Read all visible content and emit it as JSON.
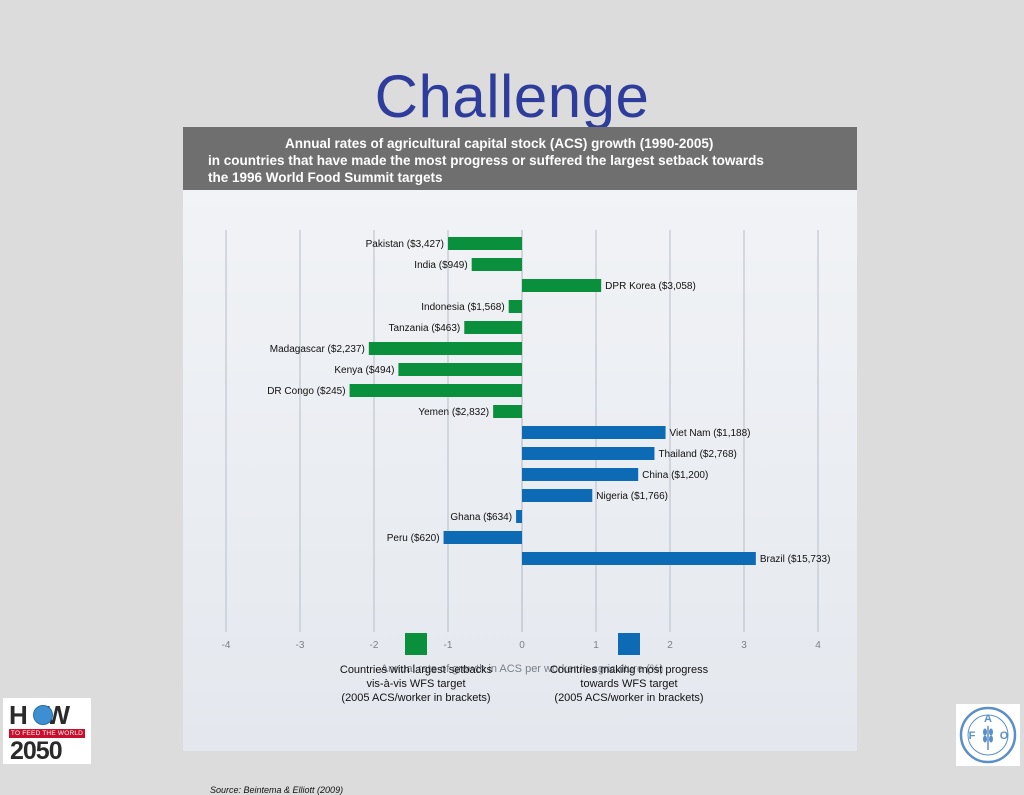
{
  "slide": {
    "title": "Challenge"
  },
  "figure": {
    "header_lines": [
      "Annual rates of agricultural capital stock (ACS) growth (1990-2005)",
      "in countries that have made the most progress or suffered the largest setback towards",
      "the 1996 World Food Summit targets"
    ],
    "legend": [
      {
        "label": "Countries with largest setbacks\nvis-à-vis WFS target\n(2005 ACS/worker in brackets)",
        "color": "#0a8f3c"
      },
      {
        "label": "Countries making most progress\ntowards WFS target\n(2005 ACS/worker in brackets)",
        "color": "#0d6bb5"
      }
    ],
    "source": "Source: Beintema & Elliott (2009)"
  },
  "chart_data": {
    "type": "bar",
    "orientation": "horizontal",
    "title": "Annual rates of agricultural capital stock (ACS) growth (1990-2005) in countries that have made the most progress or suffered the largest setback towards the 1996 World Food Summit targets",
    "xlabel": "Annual rate of growth in ACS per worker in agriculture (%)",
    "ylabel": "",
    "xlim": [
      -4,
      4
    ],
    "xticks": [
      "-4",
      "-3",
      "-2",
      "-1",
      "0",
      "1",
      "2",
      "3",
      "4"
    ],
    "grid": true,
    "legend_position": "bottom",
    "categories": [
      "Pakistan ($3,427)",
      "India ($949)",
      "DPR Korea ($3,058)",
      "Indonesia ($1,568)",
      "Tanzania ($463)",
      "Madagascar ($2,237)",
      "Kenya ($494)",
      "DR Congo ($245)",
      "Yemen ($2,832)",
      "Viet Nam ($1,188)",
      "Thailand ($2,768)",
      "China ($1,200)",
      "Nigeria ($1,766)",
      "Ghana ($634)",
      "Peru ($620)",
      "Brazil ($15,733)"
    ],
    "values": [
      -1.0,
      -0.68,
      1.07,
      -0.18,
      -0.78,
      -2.07,
      -1.67,
      -2.33,
      -0.39,
      1.94,
      1.79,
      1.57,
      0.95,
      -0.08,
      -1.06,
      3.16
    ],
    "groups": [
      0,
      0,
      0,
      0,
      0,
      0,
      0,
      0,
      0,
      1,
      1,
      1,
      1,
      1,
      1,
      1
    ],
    "colors": {
      "setback": "#0a8f3c",
      "progress": "#0d6bb5"
    }
  }
}
